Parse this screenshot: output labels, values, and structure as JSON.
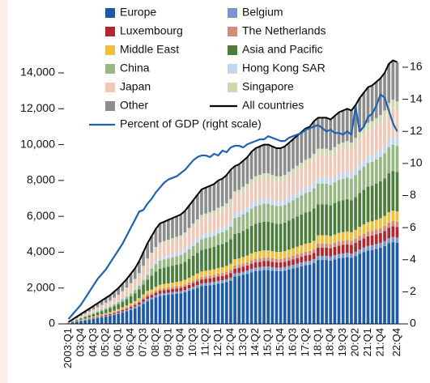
{
  "chart_data": {
    "type": "bar",
    "stacked": true,
    "categories": [
      "2003:Q1",
      null,
      null,
      "03:Q4",
      null,
      null,
      "04:Q3",
      null,
      null,
      "05:Q2",
      null,
      null,
      "06:Q1",
      null,
      null,
      "06:Q4",
      null,
      null,
      "07:Q3",
      null,
      null,
      "08:Q2",
      null,
      null,
      "09:Q1",
      null,
      null,
      "09:Q4",
      null,
      null,
      "10:Q3",
      null,
      null,
      "11:Q2",
      null,
      null,
      "12:Q1",
      null,
      null,
      "12:Q4",
      null,
      null,
      "13:Q3",
      null,
      null,
      "14:Q2",
      null,
      null,
      "15:Q1",
      null,
      null,
      "15:Q4",
      null,
      null,
      "16:Q3",
      null,
      null,
      "17:Q2",
      null,
      null,
      "18:Q1",
      null,
      null,
      "18:Q4",
      null,
      null,
      "19:Q3",
      null,
      null,
      "20:Q2",
      null,
      null,
      "21:Q1",
      null,
      null,
      "21:Q4",
      null,
      null,
      null,
      "22:Q4"
    ],
    "ylim": [
      0,
      14000
    ],
    "yticks": [
      0,
      {
        "value": 2000,
        "label": "2,000"
      },
      {
        "value": 4000,
        "label": "4,000"
      },
      {
        "value": 6000,
        "label": "6,000"
      },
      {
        "value": 8000,
        "label": "8,000"
      },
      {
        "value": 10000,
        "label": "10,000"
      },
      {
        "value": 12000,
        "label": "12,000"
      },
      {
        "value": 14000,
        "label": "14,000"
      }
    ],
    "y2lim": [
      0,
      16
    ],
    "y2ticks": [
      0,
      2,
      4,
      6,
      8,
      10,
      12,
      14,
      16
    ],
    "series": [
      {
        "name": "Europe",
        "color": "#1d5aa7",
        "values": [
          28,
          70,
          112,
          154,
          196,
          238,
          280,
          322,
          364,
          406,
          448,
          504,
          560,
          630,
          700,
          784,
          868,
          980,
          1120,
          1260,
          1372,
          1484,
          1568,
          1596,
          1624,
          1652,
          1680,
          1708,
          1764,
          1848,
          1932,
          2016,
          2100,
          2128,
          2156,
          2184,
          2240,
          2268,
          2324,
          2408,
          2640,
          2670,
          2730,
          2790,
          2880,
          2940,
          2970,
          3000,
          3000,
          2970,
          2940,
          2940,
          2970,
          3030,
          3090,
          3150,
          3210,
          3270,
          3300,
          3390,
          3565,
          3565,
          3565,
          3534,
          3596,
          3658,
          3689,
          3720,
          3689,
          3782,
          3906,
          3999,
          4092,
          4123,
          4185,
          4247,
          4340,
          4495,
          4557,
          4526
        ]
      },
      {
        "name": "Belgium",
        "color": "#7b95c9",
        "values": [
          3,
          8,
          12,
          17,
          21,
          26,
          30,
          35,
          39,
          44,
          48,
          54,
          60,
          68,
          75,
          84,
          93,
          105,
          120,
          135,
          98,
          106,
          112,
          114,
          116,
          118,
          120,
          122,
          126,
          132,
          138,
          144,
          150,
          152,
          154,
          156,
          160,
          162,
          166,
          172,
          176,
          178,
          182,
          186,
          192,
          196,
          198,
          200,
          200,
          198,
          196,
          196,
          198,
          202,
          206,
          210,
          214,
          218,
          220,
          226,
          230,
          230,
          230,
          228,
          232,
          236,
          238,
          240,
          238,
          244,
          252,
          258,
          264,
          266,
          270,
          274,
          280,
          290,
          294,
          292
        ]
      },
      {
        "name": "Luxembourg",
        "color": "#b0282e",
        "values": [
          3,
          8,
          12,
          17,
          21,
          26,
          30,
          35,
          39,
          44,
          48,
          54,
          60,
          68,
          75,
          84,
          93,
          105,
          120,
          135,
          147,
          159,
          168,
          171,
          174,
          177,
          180,
          183,
          189,
          198,
          207,
          216,
          225,
          228,
          231,
          234,
          240,
          243,
          249,
          258,
          264,
          267,
          273,
          279,
          288,
          294,
          297,
          300,
          300,
          297,
          294,
          294,
          297,
          303,
          309,
          315,
          321,
          327,
          330,
          339,
          460,
          460,
          460,
          456,
          464,
          472,
          476,
          480,
          476,
          488,
          504,
          516,
          528,
          532,
          540,
          548,
          560,
          580,
          588,
          584
        ]
      },
      {
        "name": "The Netherlands",
        "color": "#d48a7b",
        "values": [
          3,
          8,
          12,
          17,
          21,
          26,
          30,
          35,
          39,
          44,
          48,
          54,
          60,
          68,
          75,
          84,
          93,
          105,
          120,
          135,
          98,
          106,
          112,
          114,
          116,
          118,
          120,
          122,
          126,
          132,
          138,
          144,
          150,
          152,
          154,
          156,
          160,
          162,
          166,
          172,
          176,
          178,
          182,
          186,
          192,
          196,
          198,
          200,
          200,
          198,
          196,
          196,
          198,
          202,
          206,
          210,
          214,
          218,
          220,
          226,
          230,
          230,
          230,
          228,
          232,
          236,
          238,
          240,
          238,
          244,
          252,
          258,
          264,
          266,
          270,
          274,
          280,
          290,
          294,
          292
        ]
      },
      {
        "name": "Middle East",
        "color": "#f1bf3f",
        "values": [
          4,
          10,
          16,
          22,
          28,
          34,
          40,
          46,
          52,
          58,
          64,
          72,
          80,
          90,
          100,
          112,
          124,
          140,
          160,
          180,
          196,
          212,
          224,
          228,
          232,
          236,
          240,
          244,
          252,
          264,
          276,
          288,
          300,
          304,
          308,
          312,
          320,
          324,
          332,
          344,
          352,
          356,
          364,
          372,
          384,
          392,
          396,
          400,
          400,
          396,
          392,
          392,
          396,
          404,
          412,
          420,
          428,
          436,
          440,
          452,
          460,
          460,
          460,
          456,
          464,
          472,
          476,
          480,
          476,
          488,
          504,
          516,
          528,
          532,
          540,
          548,
          560,
          580,
          588,
          584
        ]
      },
      {
        "name": "Asia and Pacific",
        "color": "#4b7d3b",
        "values": [
          14,
          35,
          56,
          77,
          98,
          119,
          140,
          161,
          182,
          203,
          224,
          252,
          280,
          315,
          350,
          392,
          434,
          490,
          560,
          630,
          784,
          848,
          896,
          912,
          928,
          944,
          960,
          976,
          1008,
          1056,
          1104,
          1152,
          1200,
          1216,
          1232,
          1248,
          1280,
          1296,
          1328,
          1376,
          1408,
          1424,
          1456,
          1488,
          1536,
          1568,
          1584,
          1600,
          1600,
          1584,
          1568,
          1568,
          1584,
          1616,
          1648,
          1680,
          1712,
          1744,
          1760,
          1808,
          1725,
          1725,
          1725,
          1710,
          1740,
          1770,
          1785,
          1800,
          1785,
          1830,
          1890,
          1935,
          1980,
          1995,
          2025,
          2055,
          2100,
          2175,
          2205,
          2190
        ]
      },
      {
        "name": "China",
        "color": "#97b783",
        "values": [
          6,
          15,
          24,
          33,
          42,
          51,
          60,
          69,
          78,
          87,
          96,
          108,
          120,
          135,
          150,
          168,
          186,
          210,
          240,
          270,
          392,
          424,
          448,
          456,
          464,
          472,
          480,
          488,
          504,
          528,
          552,
          576,
          600,
          608,
          616,
          624,
          640,
          648,
          664,
          688,
          880,
          890,
          910,
          930,
          960,
          980,
          990,
          1000,
          1000,
          990,
          980,
          980,
          990,
          1010,
          1030,
          1050,
          1070,
          1090,
          1100,
          1130,
          1150,
          1150,
          1150,
          1140,
          1160,
          1180,
          1190,
          1200,
          1190,
          1220,
          1260,
          1290,
          1320,
          1330,
          1350,
          1370,
          1400,
          1450,
          1470,
          1460
        ]
      },
      {
        "name": "Hong Kong SAR",
        "color": "#c3d5ef",
        "values": [
          3,
          8,
          12,
          17,
          21,
          26,
          30,
          35,
          39,
          44,
          48,
          54,
          60,
          68,
          75,
          84,
          93,
          105,
          120,
          135,
          147,
          159,
          168,
          171,
          174,
          177,
          180,
          183,
          189,
          198,
          207,
          216,
          225,
          228,
          231,
          234,
          240,
          243,
          249,
          258,
          264,
          267,
          273,
          279,
          288,
          294,
          297,
          300,
          300,
          297,
          294,
          294,
          297,
          303,
          309,
          315,
          321,
          327,
          330,
          339,
          345,
          345,
          345,
          342,
          348,
          354,
          357,
          360,
          357,
          366,
          378,
          387,
          396,
          399,
          405,
          411,
          420,
          435,
          441,
          438
        ]
      },
      {
        "name": "Japan",
        "color": "#efc8b8",
        "values": [
          14,
          35,
          56,
          77,
          98,
          119,
          140,
          161,
          182,
          203,
          224,
          252,
          280,
          315,
          350,
          392,
          434,
          490,
          560,
          630,
          588,
          636,
          672,
          684,
          696,
          708,
          720,
          732,
          756,
          792,
          828,
          864,
          900,
          912,
          924,
          936,
          960,
          972,
          996,
          1032,
          968,
          979,
          1001,
          1023,
          1056,
          1078,
          1089,
          1100,
          1100,
          1089,
          1078,
          1078,
          1089,
          1111,
          1133,
          1155,
          1177,
          1199,
          1210,
          1243,
          1265,
          1265,
          1265,
          1254,
          1276,
          1298,
          1309,
          1320,
          1309,
          1342,
          1386,
          1419,
          1452,
          1463,
          1485,
          1507,
          1540,
          1595,
          1617,
          1606
        ]
      },
      {
        "name": "Singapore",
        "color": "#d1d6b1",
        "values": [
          3,
          8,
          12,
          17,
          21,
          26,
          30,
          35,
          39,
          44,
          48,
          54,
          60,
          68,
          75,
          84,
          93,
          105,
          120,
          135,
          147,
          159,
          168,
          171,
          174,
          177,
          180,
          183,
          189,
          198,
          207,
          216,
          225,
          228,
          231,
          234,
          240,
          243,
          249,
          258,
          264,
          267,
          273,
          279,
          288,
          294,
          297,
          300,
          300,
          297,
          294,
          294,
          297,
          303,
          309,
          315,
          321,
          327,
          330,
          339,
          345,
          345,
          345,
          342,
          348,
          354,
          357,
          360,
          357,
          366,
          378,
          387,
          396,
          399,
          405,
          411,
          420,
          435,
          441,
          438
        ]
      },
      {
        "name": "Other",
        "color": "#8d8d8d",
        "values": [
          19,
          48,
          76,
          105,
          133,
          162,
          190,
          219,
          247,
          276,
          304,
          342,
          380,
          428,
          475,
          532,
          589,
          665,
          760,
          855,
          931,
          1007,
          1064,
          1083,
          1102,
          1121,
          1140,
          1159,
          1197,
          1254,
          1311,
          1368,
          1425,
          1444,
          1463,
          1482,
          1520,
          1539,
          1577,
          1634,
          1408,
          1424,
          1456,
          1488,
          1536,
          1568,
          1584,
          1600,
          1600,
          1584,
          1568,
          1568,
          1584,
          1616,
          1648,
          1680,
          1712,
          1744,
          1760,
          1808,
          1725,
          1725,
          1725,
          1710,
          1740,
          1770,
          1785,
          1800,
          1785,
          1830,
          1890,
          1935,
          1980,
          1995,
          2025,
          2055,
          2100,
          2175,
          2205,
          2190
        ]
      },
      {
        "name": "All countries",
        "type": "line",
        "color": "#000000",
        "values": [
          100,
          250,
          400,
          550,
          700,
          850,
          1000,
          1150,
          1300,
          1450,
          1600,
          1800,
          2000,
          2250,
          2500,
          2800,
          3100,
          3500,
          4000,
          4500,
          4900,
          5300,
          5600,
          5700,
          5800,
          5900,
          6000,
          6100,
          6300,
          6600,
          6900,
          7200,
          7500,
          7600,
          7700,
          7800,
          8000,
          8100,
          8300,
          8600,
          8800,
          8900,
          9100,
          9300,
          9600,
          9800,
          9900,
          10000,
          10000,
          9900,
          9800,
          9800,
          9900,
          10100,
          10300,
          10500,
          10700,
          10900,
          11000,
          11300,
          11500,
          11500,
          11500,
          11400,
          11600,
          11800,
          11900,
          12000,
          11900,
          12200,
          12600,
          12900,
          13200,
          13300,
          13500,
          13700,
          14000,
          14500,
          14700,
          14600
        ]
      },
      {
        "name": "Percent of GDP (right scale)",
        "type": "line",
        "axis": "y2",
        "color": "#1f63b0",
        "values": [
          0.3,
          0.6,
          0.9,
          1.2,
          1.6,
          2.0,
          2.4,
          2.8,
          3.1,
          3.4,
          3.8,
          4.2,
          4.6,
          5.0,
          5.5,
          6.0,
          6.5,
          7.0,
          7.1,
          7.5,
          7.8,
          8.2,
          8.5,
          8.8,
          9.0,
          9.1,
          9.2,
          9.4,
          9.6,
          9.9,
          10.2,
          10.4,
          10.5,
          10.5,
          10.4,
          10.6,
          10.5,
          10.8,
          10.7,
          11.0,
          11.1,
          11.1,
          11.0,
          11.2,
          11.3,
          11.4,
          11.5,
          11.5,
          11.7,
          11.6,
          11.5,
          11.4,
          11.4,
          11.6,
          11.7,
          11.8,
          11.9,
          12.1,
          12.2,
          12.3,
          12.4,
          12.2,
          12.0,
          12.1,
          11.9,
          11.9,
          11.8,
          12.0,
          11.8,
          13.5,
          12.0,
          12.3,
          12.9,
          13.1,
          13.6,
          14.3,
          14.1,
          13.3,
          12.5,
          12.0
        ]
      }
    ]
  }
}
